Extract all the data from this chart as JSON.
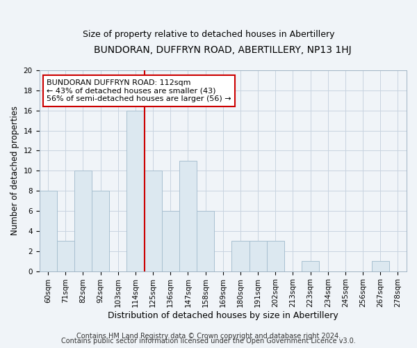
{
  "title": "BUNDORAN, DUFFRYN ROAD, ABERTILLERY, NP13 1HJ",
  "subtitle": "Size of property relative to detached houses in Abertillery",
  "xlabel": "Distribution of detached houses by size in Abertillery",
  "ylabel": "Number of detached properties",
  "bar_labels": [
    "60sqm",
    "71sqm",
    "82sqm",
    "92sqm",
    "103sqm",
    "114sqm",
    "125sqm",
    "136sqm",
    "147sqm",
    "158sqm",
    "169sqm",
    "180sqm",
    "191sqm",
    "202sqm",
    "213sqm",
    "223sqm",
    "234sqm",
    "245sqm",
    "256sqm",
    "267sqm",
    "278sqm"
  ],
  "bar_values": [
    8,
    3,
    10,
    8,
    0,
    16,
    10,
    6,
    11,
    6,
    0,
    3,
    3,
    3,
    0,
    1,
    0,
    0,
    0,
    1,
    0
  ],
  "bar_color": "#dce8f0",
  "bar_edge_color": "#a8c0d0",
  "highlight_bar_index": 5,
  "highlight_line_color": "#cc0000",
  "annotation_line1": "BUNDORAN DUFFRYN ROAD: 112sqm",
  "annotation_line2": "← 43% of detached houses are smaller (43)",
  "annotation_line3": "56% of semi-detached houses are larger (56) →",
  "annotation_box_color": "#ffffff",
  "annotation_box_edge_color": "#cc0000",
  "ylim": [
    0,
    20
  ],
  "yticks": [
    0,
    2,
    4,
    6,
    8,
    10,
    12,
    14,
    16,
    18,
    20
  ],
  "footer_line1": "Contains HM Land Registry data © Crown copyright and database right 2024.",
  "footer_line2": "Contains public sector information licensed under the Open Government Licence v3.0.",
  "title_fontsize": 10,
  "subtitle_fontsize": 9,
  "xlabel_fontsize": 9,
  "ylabel_fontsize": 8.5,
  "tick_fontsize": 7.5,
  "footer_fontsize": 7,
  "annotation_fontsize": 8,
  "bg_color": "#f0f4f8"
}
